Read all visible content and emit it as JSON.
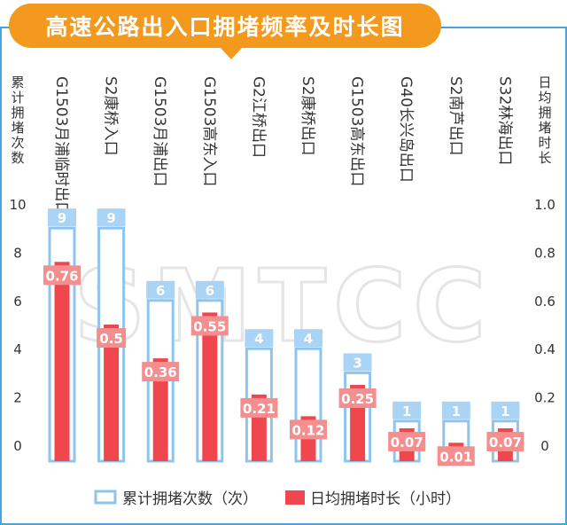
{
  "title": "高速公路出入口拥堵频率及时长图",
  "watermark": "SMTCC",
  "colors": {
    "accent": "#f39a1e",
    "frame": "#4aa3df",
    "count_fill": "#ffffff",
    "count_stroke": "#8fc4ee",
    "count_label_bg": "#a9d4f5",
    "duration_fill": "#f0474f",
    "duration_label_bg": "#f48f8f",
    "axis_text": "#333333"
  },
  "chart_data": {
    "type": "bar",
    "categories": [
      "G1503月浦临时出口",
      "S2康桥入口",
      "G1503月浦出口",
      "G1503高东入口",
      "G2江桥出口",
      "S2康桥出口",
      "G1503高东出口",
      "G40长兴岛出口",
      "S2南芦出口",
      "S32林海出口"
    ],
    "series": [
      {
        "name": "累计拥堵次数（次）",
        "axis": "left",
        "values": [
          9,
          9,
          6,
          6,
          4,
          4,
          3,
          1,
          1,
          1
        ],
        "labels": [
          "9",
          "9",
          "6",
          "6",
          "4",
          "4",
          "3",
          "1",
          "1",
          "1"
        ]
      },
      {
        "name": "日均拥堵时长（小时）",
        "axis": "right",
        "values": [
          0.76,
          0.5,
          0.36,
          0.55,
          0.21,
          0.12,
          0.25,
          0.07,
          0.01,
          0.07
        ],
        "labels": [
          "0.76",
          "0.5",
          "0.36",
          "0.55",
          "0.21",
          "0.12",
          "0.25",
          "0.07",
          "0.01",
          "0.07"
        ]
      }
    ],
    "left_axis": {
      "label": "累计拥堵次数",
      "ticks": [
        "0",
        "2",
        "4",
        "6",
        "8",
        "10"
      ],
      "tick_values": [
        0,
        2,
        4,
        6,
        8,
        10
      ],
      "range": [
        0,
        10
      ]
    },
    "right_axis": {
      "label": "日均拥堵时长",
      "ticks": [
        "0",
        "0.2",
        "0.4",
        "0.6",
        "0.8",
        "1.0"
      ],
      "tick_values": [
        0,
        0.2,
        0.4,
        0.6,
        0.8,
        1.0
      ],
      "range": [
        0,
        1.0
      ]
    },
    "grid": false,
    "legend_position": "bottom"
  }
}
